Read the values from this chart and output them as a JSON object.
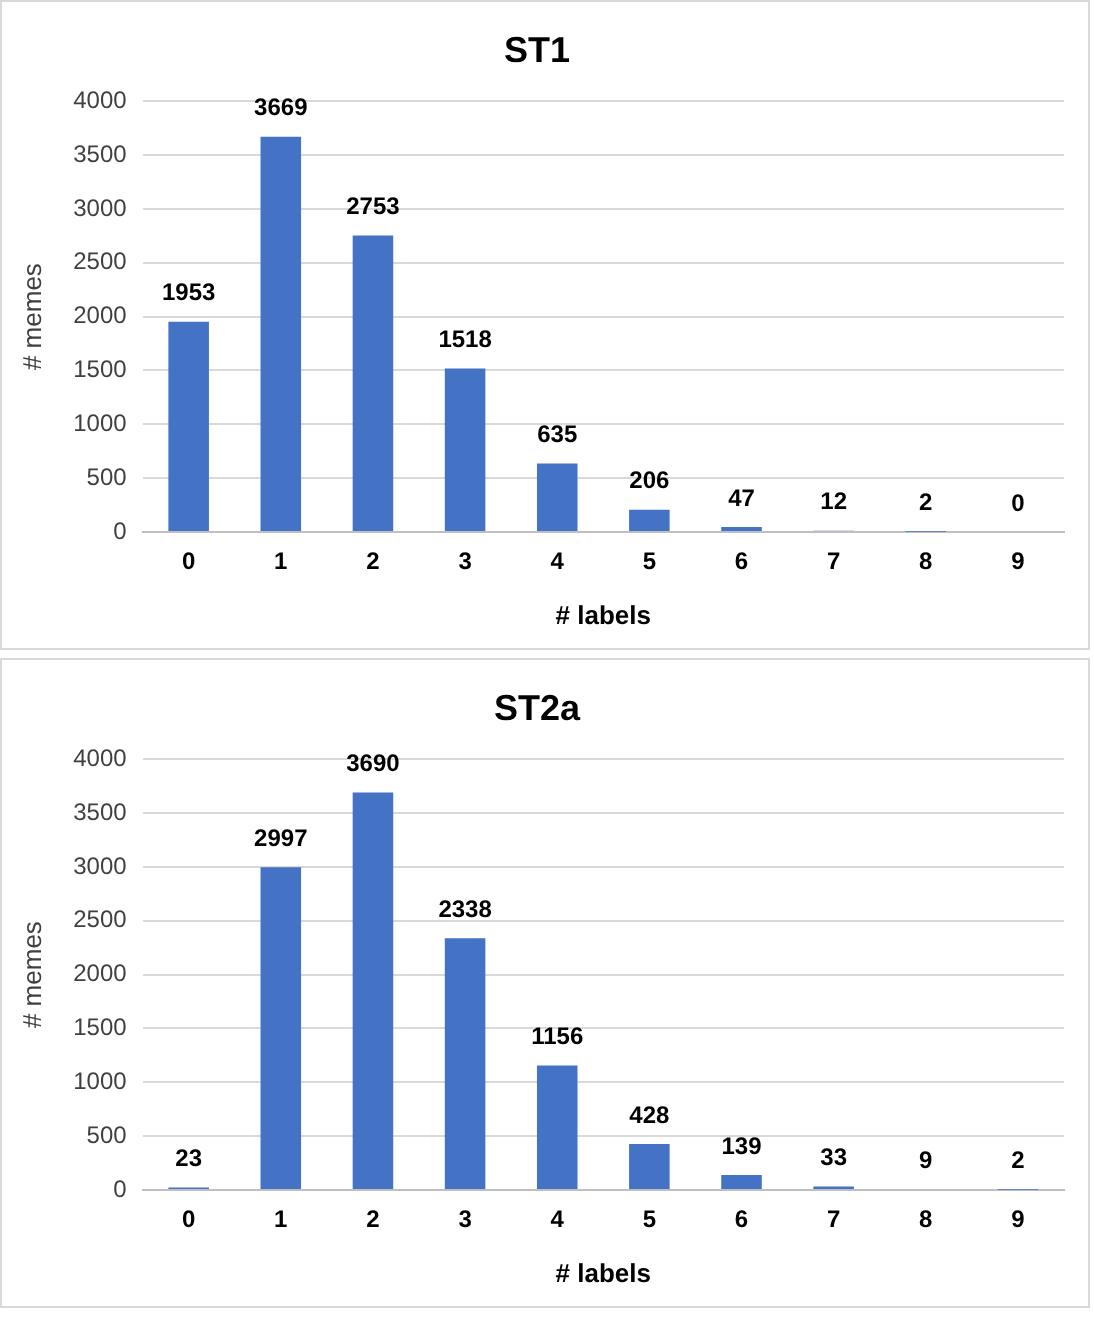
{
  "chart_data": [
    {
      "type": "bar",
      "title": "ST1",
      "xlabel": "# labels",
      "ylabel": "# memes",
      "categories": [
        "0",
        "1",
        "2",
        "3",
        "4",
        "5",
        "6",
        "7",
        "8",
        "9"
      ],
      "values": [
        1953,
        3669,
        2753,
        1518,
        635,
        206,
        47,
        12,
        2,
        0
      ],
      "color": "#4472c4",
      "ylim": [
        0,
        4000
      ],
      "yticks": [
        0,
        500,
        1000,
        1500,
        2000,
        2500,
        3000,
        3500,
        4000
      ],
      "grid": "y",
      "data_labels": true
    },
    {
      "type": "bar",
      "title": "ST2a",
      "xlabel": "# labels",
      "ylabel": "# memes",
      "categories": [
        "0",
        "1",
        "2",
        "3",
        "4",
        "5",
        "6",
        "7",
        "8",
        "9"
      ],
      "values": [
        23,
        2997,
        3690,
        2338,
        1156,
        428,
        139,
        33,
        9,
        2
      ],
      "color": "#4472c4",
      "ylim": [
        0,
        4000
      ],
      "yticks": [
        0,
        500,
        1000,
        1500,
        2000,
        2500,
        3000,
        3500,
        4000
      ],
      "grid": "y",
      "data_labels": true
    }
  ]
}
